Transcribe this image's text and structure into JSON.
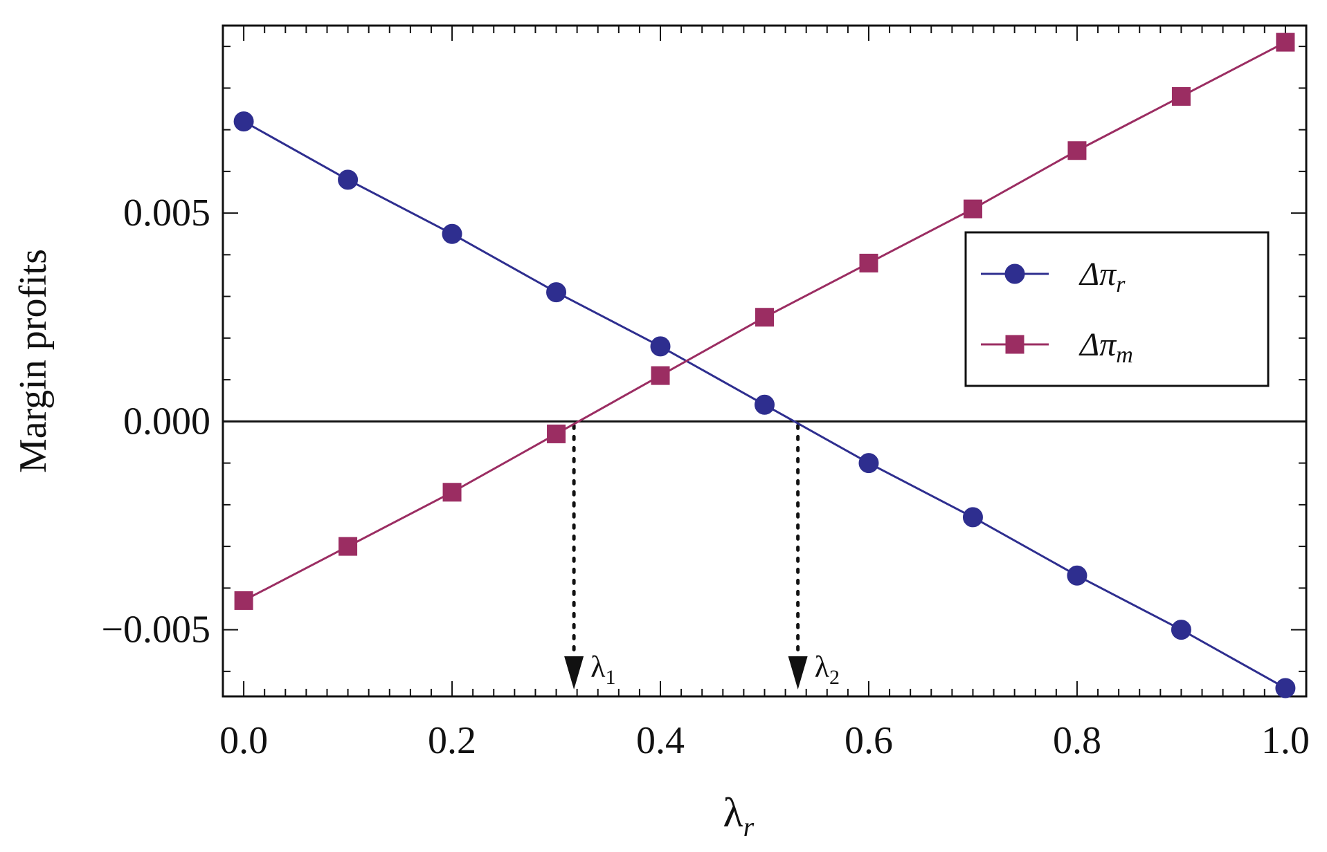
{
  "chart_data": {
    "type": "line",
    "title": "",
    "xlabel": "λ",
    "xlabel_sub": "r",
    "ylabel": "Margin profits",
    "xlim": [
      -0.02,
      1.02
    ],
    "ylim": [
      -0.0066,
      0.0095
    ],
    "x_ticks": [
      0.0,
      0.2,
      0.4,
      0.6,
      0.8,
      1.0
    ],
    "x_tick_labels": [
      "0.0",
      "0.2",
      "0.4",
      "0.6",
      "0.8",
      "1.0"
    ],
    "y_ticks": [
      -0.005,
      0.0,
      0.005
    ],
    "y_tick_labels": [
      "−0.005",
      "0.000",
      "0.005"
    ],
    "grid": false,
    "zero_line": true,
    "legend_position": "right",
    "x": [
      0.0,
      0.1,
      0.2,
      0.3,
      0.4,
      0.5,
      0.6,
      0.7,
      0.8,
      0.9,
      1.0
    ],
    "series": [
      {
        "name": "Δπ",
        "name_sub": "r",
        "color": "#2e2e8f",
        "marker": "circle",
        "values": [
          0.0072,
          0.0058,
          0.0045,
          0.0031,
          0.0018,
          0.0004,
          -0.001,
          -0.0023,
          -0.0037,
          -0.005,
          -0.0064
        ]
      },
      {
        "name": "Δπ",
        "name_sub": "m",
        "color": "#9b2d62",
        "marker": "square",
        "values": [
          -0.0043,
          -0.003,
          -0.0017,
          -0.0003,
          0.0011,
          0.0025,
          0.0038,
          0.0051,
          0.0065,
          0.0078,
          0.0091
        ]
      }
    ],
    "annotations": [
      {
        "label": "λ",
        "sub": "1",
        "x": 0.317
      },
      {
        "label": "λ",
        "sub": "2",
        "x": 0.532
      }
    ]
  }
}
